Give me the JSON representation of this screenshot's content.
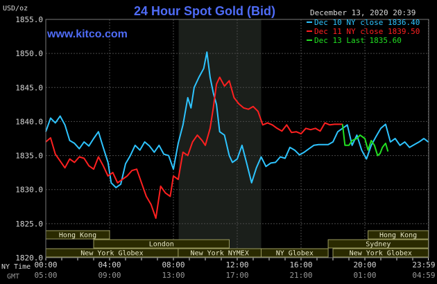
{
  "chart_data": {
    "type": "line",
    "title": "24 Hour Spot Gold (Bid)",
    "website": "www.kitco.com",
    "date_stamp": "December 13, 2020 20:39",
    "ylabel": "USD/oz",
    "ylim": [
      1820,
      1855
    ],
    "y_ticks": [
      "1855.0",
      "1850.0",
      "1845.0",
      "1840.0",
      "1835.0",
      "1830.0",
      "1825.0",
      "1820.0"
    ],
    "xlim": [
      0,
      24
    ],
    "x_ticks_ny": [
      "00:00",
      "04:00",
      "08:00",
      "12:00",
      "16:00",
      "20:00",
      "23:59"
    ],
    "x_ticks_gmt": [
      "05:00",
      "09:00",
      "13:00",
      "17:00",
      "21:00",
      "01:00",
      "04:59"
    ],
    "axis_ny_label": "NY Time",
    "axis_gmt_label": "GMT",
    "grid": true,
    "legend_position": "top-right",
    "nymex_window_hours": [
      8.33,
      13.5
    ],
    "colors": {
      "background": "#000000",
      "plot_bg": "#000000",
      "nymex_bg": "#1b1f1b",
      "grid": "#4a4a4a",
      "title": "#4f6cf7",
      "axis_text": "#d8d8d8",
      "session_bar": "#2a2a00",
      "session_border": "#9a9a60"
    },
    "series": [
      {
        "name": "Dec 10 NY close 1836.40",
        "color": "#2ec4ff",
        "points": [
          [
            0.0,
            1838.5
          ],
          [
            0.3,
            1840.5
          ],
          [
            0.6,
            1839.8
          ],
          [
            0.9,
            1840.8
          ],
          [
            1.2,
            1839.5
          ],
          [
            1.5,
            1837.2
          ],
          [
            1.8,
            1836.8
          ],
          [
            2.1,
            1836.0
          ],
          [
            2.4,
            1837.0
          ],
          [
            2.7,
            1836.4
          ],
          [
            3.0,
            1837.5
          ],
          [
            3.3,
            1838.5
          ],
          [
            3.6,
            1836.2
          ],
          [
            3.9,
            1834.0
          ],
          [
            4.1,
            1831.0
          ],
          [
            4.4,
            1830.3
          ],
          [
            4.7,
            1830.8
          ],
          [
            5.0,
            1833.8
          ],
          [
            5.3,
            1835.0
          ],
          [
            5.6,
            1836.5
          ],
          [
            5.9,
            1835.8
          ],
          [
            6.2,
            1837.0
          ],
          [
            6.5,
            1836.4
          ],
          [
            6.8,
            1835.5
          ],
          [
            7.1,
            1836.5
          ],
          [
            7.4,
            1835.2
          ],
          [
            7.7,
            1835.0
          ],
          [
            8.0,
            1833.0
          ],
          [
            8.3,
            1836.8
          ],
          [
            8.6,
            1839.5
          ],
          [
            8.9,
            1843.5
          ],
          [
            9.1,
            1842.0
          ],
          [
            9.3,
            1845.0
          ],
          [
            9.6,
            1846.5
          ],
          [
            9.9,
            1847.8
          ],
          [
            10.1,
            1850.2
          ],
          [
            10.3,
            1846.5
          ],
          [
            10.5,
            1844.2
          ],
          [
            10.7,
            1842.5
          ],
          [
            10.9,
            1838.5
          ],
          [
            11.2,
            1838.0
          ],
          [
            11.5,
            1835.0
          ],
          [
            11.7,
            1834.0
          ],
          [
            12.0,
            1834.5
          ],
          [
            12.3,
            1836.5
          ],
          [
            12.6,
            1833.8
          ],
          [
            12.9,
            1831.0
          ],
          [
            13.2,
            1833.2
          ],
          [
            13.5,
            1834.8
          ],
          [
            13.8,
            1833.4
          ],
          [
            14.1,
            1833.9
          ],
          [
            14.4,
            1834.0
          ],
          [
            14.7,
            1834.8
          ],
          [
            15.0,
            1834.6
          ],
          [
            15.3,
            1836.2
          ],
          [
            15.6,
            1835.8
          ],
          [
            15.9,
            1835.1
          ],
          [
            16.2,
            1835.5
          ],
          [
            16.5,
            1836.0
          ],
          [
            16.8,
            1836.5
          ],
          [
            17.1,
            1836.6
          ],
          [
            17.4,
            1836.6
          ],
          [
            17.7,
            1836.6
          ],
          [
            18.0,
            1837.0
          ],
          [
            18.3,
            1838.5
          ],
          [
            18.6,
            1839.0
          ],
          [
            18.9,
            1839.5
          ],
          [
            19.2,
            1836.5
          ],
          [
            19.5,
            1838.0
          ],
          [
            19.8,
            1835.8
          ],
          [
            20.1,
            1834.5
          ],
          [
            20.4,
            1836.5
          ],
          [
            20.7,
            1837.8
          ],
          [
            21.0,
            1839.0
          ],
          [
            21.3,
            1839.6
          ],
          [
            21.6,
            1837.0
          ],
          [
            21.9,
            1837.5
          ],
          [
            22.2,
            1836.5
          ],
          [
            22.5,
            1837.0
          ],
          [
            22.8,
            1836.2
          ],
          [
            23.1,
            1836.6
          ],
          [
            23.4,
            1837.0
          ],
          [
            23.7,
            1837.5
          ],
          [
            23.98,
            1837.0
          ]
        ]
      },
      {
        "name": "Dec 11 NY close 1839.50",
        "color": "#ff2020",
        "points": [
          [
            0.0,
            1837.0
          ],
          [
            0.3,
            1837.6
          ],
          [
            0.6,
            1835.2
          ],
          [
            0.9,
            1834.2
          ],
          [
            1.2,
            1833.2
          ],
          [
            1.5,
            1834.5
          ],
          [
            1.8,
            1834.0
          ],
          [
            2.1,
            1834.8
          ],
          [
            2.4,
            1834.6
          ],
          [
            2.7,
            1833.5
          ],
          [
            3.0,
            1833.0
          ],
          [
            3.3,
            1834.8
          ],
          [
            3.6,
            1833.5
          ],
          [
            3.9,
            1832.0
          ],
          [
            4.2,
            1832.5
          ],
          [
            4.5,
            1831.0
          ],
          [
            4.8,
            1831.5
          ],
          [
            5.1,
            1832.0
          ],
          [
            5.4,
            1832.8
          ],
          [
            5.7,
            1833.0
          ],
          [
            6.0,
            1831.0
          ],
          [
            6.3,
            1829.0
          ],
          [
            6.6,
            1827.8
          ],
          [
            6.9,
            1825.8
          ],
          [
            7.2,
            1830.5
          ],
          [
            7.5,
            1829.5
          ],
          [
            7.8,
            1829.0
          ],
          [
            8.0,
            1832.0
          ],
          [
            8.3,
            1831.5
          ],
          [
            8.6,
            1835.5
          ],
          [
            8.9,
            1835.0
          ],
          [
            9.2,
            1837.0
          ],
          [
            9.5,
            1838.0
          ],
          [
            9.8,
            1837.2
          ],
          [
            10.0,
            1836.5
          ],
          [
            10.3,
            1839.0
          ],
          [
            10.5,
            1842.0
          ],
          [
            10.7,
            1845.5
          ],
          [
            10.9,
            1846.5
          ],
          [
            11.2,
            1845.2
          ],
          [
            11.5,
            1846.0
          ],
          [
            11.8,
            1843.5
          ],
          [
            12.1,
            1842.6
          ],
          [
            12.4,
            1842.0
          ],
          [
            12.7,
            1841.8
          ],
          [
            13.0,
            1842.2
          ],
          [
            13.3,
            1841.5
          ],
          [
            13.6,
            1839.5
          ],
          [
            13.9,
            1839.8
          ],
          [
            14.2,
            1839.5
          ],
          [
            14.5,
            1839.0
          ],
          [
            14.8,
            1838.6
          ],
          [
            15.1,
            1839.5
          ],
          [
            15.4,
            1838.4
          ],
          [
            15.7,
            1838.5
          ],
          [
            16.0,
            1838.2
          ],
          [
            16.3,
            1839.0
          ],
          [
            16.6,
            1838.8
          ],
          [
            16.9,
            1839.0
          ],
          [
            17.2,
            1838.6
          ],
          [
            17.5,
            1839.8
          ],
          [
            17.8,
            1839.5
          ],
          [
            18.1,
            1839.6
          ],
          [
            18.4,
            1839.6
          ],
          [
            18.6,
            1839.6
          ]
        ]
      },
      {
        "name": "Dec 13 Last 1835.60",
        "color": "#22e022",
        "points": [
          [
            18.6,
            1839.6
          ],
          [
            18.75,
            1836.5
          ],
          [
            19.0,
            1836.5
          ],
          [
            19.2,
            1837.2
          ],
          [
            19.5,
            1837.5
          ],
          [
            19.7,
            1838.0
          ],
          [
            20.0,
            1837.5
          ],
          [
            20.2,
            1835.8
          ],
          [
            20.4,
            1837.2
          ],
          [
            20.6,
            1836.5
          ],
          [
            20.8,
            1835.0
          ],
          [
            20.95,
            1835.3
          ],
          [
            21.1,
            1836.2
          ],
          [
            21.3,
            1836.8
          ],
          [
            21.45,
            1835.6
          ]
        ]
      }
    ],
    "sessions": [
      {
        "label": "Hong Kong",
        "start": 0.0,
        "end": 4.0,
        "row": 0
      },
      {
        "label": "Hong Kong",
        "start": 20.2,
        "end": 23.98,
        "row": 0
      },
      {
        "label": "London",
        "start": 3.0,
        "end": 11.5,
        "row": 1
      },
      {
        "label": "Sydney",
        "start": 17.7,
        "end": 23.98,
        "row": 1
      },
      {
        "label": "New York Globex",
        "start": 0.0,
        "end": 8.3,
        "row": 2
      },
      {
        "label": "New York NYMEX",
        "start": 8.3,
        "end": 13.5,
        "row": 2
      },
      {
        "label": "NY Globex",
        "start": 13.5,
        "end": 17.7,
        "row": 2
      },
      {
        "label": "New York Globex",
        "start": 18.0,
        "end": 23.98,
        "row": 2
      }
    ]
  }
}
